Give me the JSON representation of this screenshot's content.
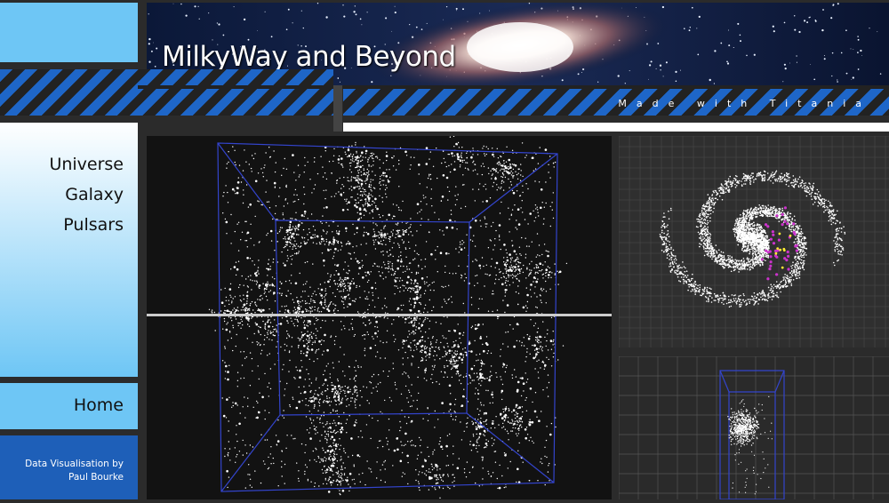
{
  "header": {
    "title": "MilkyWay and Beyond",
    "made_with": "Made with Titania"
  },
  "nav": {
    "items": [
      {
        "label": "Universe"
      },
      {
        "label": "Galaxy"
      },
      {
        "label": "Pulsars"
      }
    ],
    "home": "Home"
  },
  "credit": {
    "text": "Data Visualisation by\nPaul Bourke"
  },
  "colors": {
    "accent_light": "#6ec6f5",
    "accent_dark": "#1e5fb8",
    "stripe_blue": "#1e66c8",
    "cube_edges": "#3344cc"
  }
}
